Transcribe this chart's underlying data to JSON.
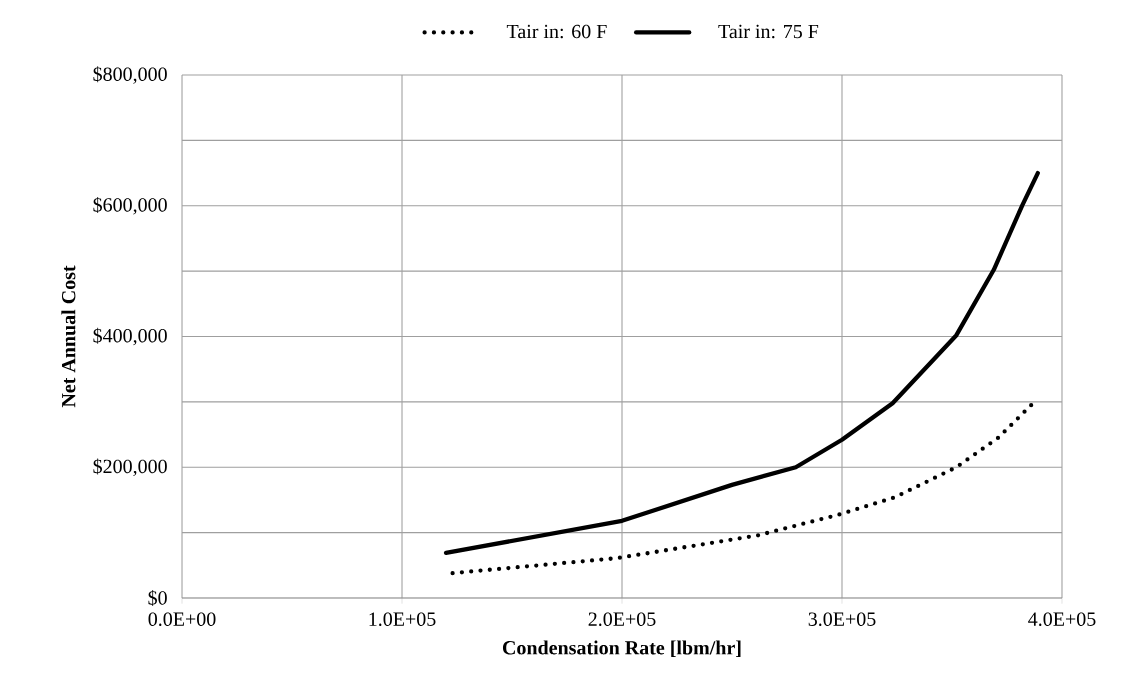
{
  "chart_data": {
    "type": "line",
    "xlabel": "Condensation Rate [lbm/hr]",
    "ylabel": "Net Annual Cost",
    "xlim": [
      0,
      400000
    ],
    "ylim": [
      0,
      800000
    ],
    "xticks": [
      {
        "value": 0,
        "label": "0.0E+00"
      },
      {
        "value": 100000,
        "label": "1.0E+05"
      },
      {
        "value": 200000,
        "label": "2.0E+05"
      },
      {
        "value": 300000,
        "label": "3.0E+05"
      },
      {
        "value": 400000,
        "label": "4.0E+05"
      }
    ],
    "yticks": [
      {
        "value": 0,
        "label": "$0"
      },
      {
        "value": 100000,
        "label": null
      },
      {
        "value": 200000,
        "label": "$200,000"
      },
      {
        "value": 300000,
        "label": null
      },
      {
        "value": 400000,
        "label": "$400,000"
      },
      {
        "value": 500000,
        "label": null
      },
      {
        "value": 600000,
        "label": "$600,000"
      },
      {
        "value": 700000,
        "label": null
      },
      {
        "value": 800000,
        "label": "$800,000"
      }
    ],
    "grid": true,
    "legend": "top",
    "series": [
      {
        "name": "Tair in: 60 F",
        "color": "#000000",
        "line_style": "dotted",
        "x": [
          123000,
          198000,
          262000,
          298000,
          324000,
          352000,
          371000,
          386000
        ],
        "values": [
          38000,
          61000,
          96000,
          127000,
          154000,
          200000,
          245000,
          295000
        ]
      },
      {
        "name": "Tair in: 75 F",
        "color": "#000000",
        "line_style": "solid",
        "x": [
          120000,
          200000,
          250000,
          279000,
          300000,
          323000,
          352000,
          369000,
          382000,
          389000
        ],
        "values": [
          69000,
          118000,
          173000,
          200000,
          242000,
          298000,
          402000,
          502000,
          601000,
          650000
        ]
      }
    ]
  }
}
